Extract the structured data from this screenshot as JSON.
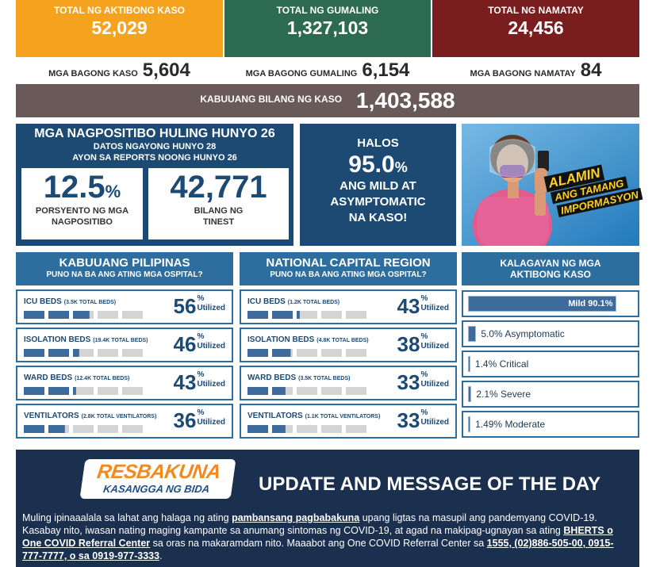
{
  "summary": {
    "cards": [
      {
        "label": "TOTAL NG AKTIBONG KASO",
        "value": "52,029",
        "color": "#f5a31f"
      },
      {
        "label": "TOTAL NG GUMALING",
        "value": "1,327,103",
        "color": "#2d6a52"
      },
      {
        "label": "TOTAL NG NAMATAY",
        "value": "24,456",
        "color": "#7a1d1f"
      }
    ],
    "new": [
      {
        "label": "MGA BAGONG KASO",
        "value": "5,604"
      },
      {
        "label": "MGA BAGONG GUMALING",
        "value": "6,154"
      },
      {
        "label": "MGA BAGONG NAMATAY",
        "value": "84"
      }
    ],
    "total": {
      "label": "KABUUANG BILANG NG KASO",
      "value": "1,403,588"
    }
  },
  "positives": {
    "title": "MGA NAGPOSITIBO HULING HUNYO 26",
    "subtitle": [
      "DATOS NGAYONG HUNYO 28",
      "AYON SA REPORTS NOONG HUNYO 26"
    ],
    "rate": {
      "value": "12.5",
      "unit": "%",
      "label": [
        "PORSYENTO NG MGA",
        "NAGPOSITIBO"
      ]
    },
    "tests": {
      "value": "42,771",
      "label": [
        "BILANG NG",
        "TINEST"
      ]
    }
  },
  "mild": {
    "lead": "HALOS",
    "value": "95.0",
    "unit": "%",
    "lines": [
      "ANG MILD AT",
      "ASYMPTOMATIC",
      "NA KASO!"
    ]
  },
  "campaign": {
    "lines": [
      "ALAMIN",
      "ANG TAMANG",
      "IMPORMASYON"
    ]
  },
  "hospitals": [
    {
      "title": "KABUUANG PILIPINAS",
      "subtitle": "PUNO NA BA ANG ATING MGA OSPITAL?",
      "rows": [
        {
          "name": "ICU BEDS",
          "capacity": "(3.5K TOTAL BEDS)",
          "value": 56,
          "unit": "%",
          "suffix": "Utilized"
        },
        {
          "name": "ISOLATION BEDS",
          "capacity": "(19.4K TOTAL BEDS)",
          "value": 46,
          "unit": "%",
          "suffix": "Utilized"
        },
        {
          "name": "WARD BEDS",
          "capacity": "(12.4K TOTAL BEDS)",
          "value": 43,
          "unit": "%",
          "suffix": "Utilized"
        },
        {
          "name": "VENTILATORS",
          "capacity": "(2.8K TOTAL VENTILATORS)",
          "value": 36,
          "unit": "%",
          "suffix": "Utilized"
        }
      ]
    },
    {
      "title": "NATIONAL CAPITAL REGION",
      "subtitle": "PUNO NA BA ANG ATING MGA OSPITAL?",
      "rows": [
        {
          "name": "ICU BEDS",
          "capacity": "(1.2K TOTAL BEDS)",
          "value": 43,
          "unit": "%",
          "suffix": "Utilized"
        },
        {
          "name": "ISOLATION BEDS",
          "capacity": "(4.8K TOTAL BEDS)",
          "value": 38,
          "unit": "%",
          "suffix": "Utilized"
        },
        {
          "name": "WARD BEDS",
          "capacity": "(3.5K TOTAL BEDS)",
          "value": 33,
          "unit": "%",
          "suffix": "Utilized"
        },
        {
          "name": "VENTILATORS",
          "capacity": "(1.1K TOTAL VENTILATORS)",
          "value": 33,
          "unit": "%",
          "suffix": "Utilized"
        }
      ]
    }
  ],
  "status": {
    "title": [
      "KALAGAYAN NG MGA",
      "AKTIBONG KASO"
    ],
    "items": [
      {
        "label": "Mild 90.1%",
        "value": 90.1
      },
      {
        "label": "5.0% Asymptomatic",
        "value": 5.0
      },
      {
        "label": "1.4% Critical",
        "value": 1.4
      },
      {
        "label": "2.1% Severe",
        "value": 2.1
      },
      {
        "label": "1.49% Moderate",
        "value": 1.49
      }
    ]
  },
  "bulletin": {
    "logo": [
      "RESBAKUNA",
      "KASANGGA NG BIDA"
    ],
    "title": "UPDATE AND MESSAGE OF THE DAY",
    "paragraph": [
      {
        "text": "Muling ipinaaalala sa lahat ang halaga ng ating ",
        "bold": false
      },
      {
        "text": "pambansang pagbabakuna",
        "bold": true
      },
      {
        "text": " upang ligtas na masupil ang pandemyang COVID-19. Kasabay nito, iwasan nating maging kampante sa anumang sintomas ng COVID-19, at agad na makipag-ugnayan sa ating ",
        "bold": false
      },
      {
        "text": "BHERTS o One COVID Referral Center",
        "bold": true
      },
      {
        "text": " sa oras na makaramdam nito. Maaabot ang One COVID Referral Center sa ",
        "bold": false
      },
      {
        "text": "1555, (02)886-505-00, 0915-777-7777, o sa 0919-977-3333",
        "bold": true
      },
      {
        "text": ".",
        "bold": false
      }
    ]
  }
}
